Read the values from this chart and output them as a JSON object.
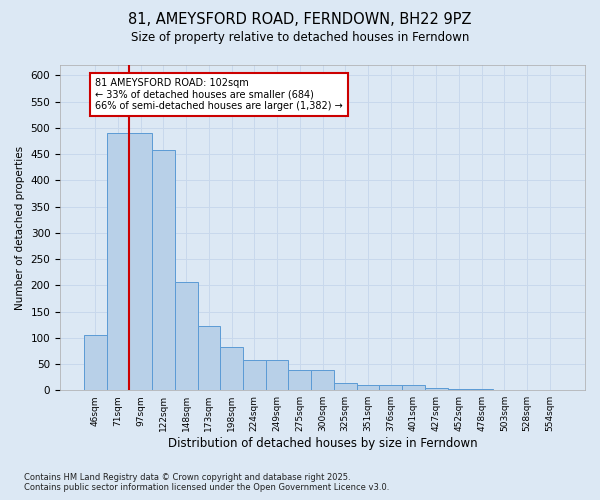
{
  "title": "81, AMEYSFORD ROAD, FERNDOWN, BH22 9PZ",
  "subtitle": "Size of property relative to detached houses in Ferndown",
  "xlabel": "Distribution of detached houses by size in Ferndown",
  "ylabel": "Number of detached properties",
  "footnote": "Contains HM Land Registry data © Crown copyright and database right 2025.\nContains public sector information licensed under the Open Government Licence v3.0.",
  "categories": [
    "46sqm",
    "71sqm",
    "97sqm",
    "122sqm",
    "148sqm",
    "173sqm",
    "198sqm",
    "224sqm",
    "249sqm",
    "275sqm",
    "300sqm",
    "325sqm",
    "351sqm",
    "376sqm",
    "401sqm",
    "427sqm",
    "452sqm",
    "478sqm",
    "503sqm",
    "528sqm",
    "554sqm"
  ],
  "values": [
    105,
    490,
    490,
    458,
    207,
    122,
    83,
    57,
    57,
    38,
    38,
    14,
    10,
    10,
    10,
    4,
    2,
    2,
    1,
    1,
    1
  ],
  "bar_color": "#b8d0e8",
  "bar_edge_color": "#5b9bd5",
  "grid_color": "#c8d8ec",
  "background_color": "#dce8f4",
  "vline_x": 1.5,
  "vline_color": "#cc0000",
  "annotation_text": "81 AMEYSFORD ROAD: 102sqm\n← 33% of detached houses are smaller (684)\n66% of semi-detached houses are larger (1,382) →",
  "annotation_box_color": "#ffffff",
  "annotation_box_edge": "#cc0000",
  "ylim": [
    0,
    620
  ],
  "yticks": [
    0,
    50,
    100,
    150,
    200,
    250,
    300,
    350,
    400,
    450,
    500,
    550,
    600
  ]
}
